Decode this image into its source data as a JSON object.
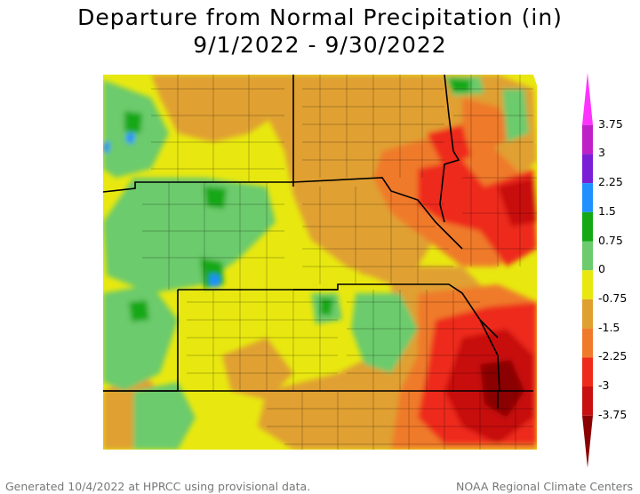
{
  "title": {
    "line1": "Departure from Normal Precipitation (in)",
    "line2": "9/1/2022 - 9/30/2022"
  },
  "legend": {
    "labels": [
      "3.75",
      "3",
      "2.25",
      "1.5",
      "0.75",
      "0",
      "-0.75",
      "-1.5",
      "-2.25",
      "-3",
      "-3.75"
    ],
    "bins": [
      {
        "color": "#ff33ff"
      },
      {
        "color": "#c020c8"
      },
      {
        "color": "#7a1fd6"
      },
      {
        "color": "#1e90ff"
      },
      {
        "color": "#13a814"
      },
      {
        "color": "#6ccb6c"
      },
      {
        "color": "#e8e810"
      },
      {
        "color": "#e0a030"
      },
      {
        "color": "#ef7a2a"
      },
      {
        "color": "#ee2a1a"
      },
      {
        "color": "#c81010"
      },
      {
        "color": "#8b0000"
      }
    ]
  },
  "footer": {
    "left": "Generated 10/4/2022 at HPRCC using provisional data.",
    "right": "NOAA Regional Climate Centers"
  }
}
